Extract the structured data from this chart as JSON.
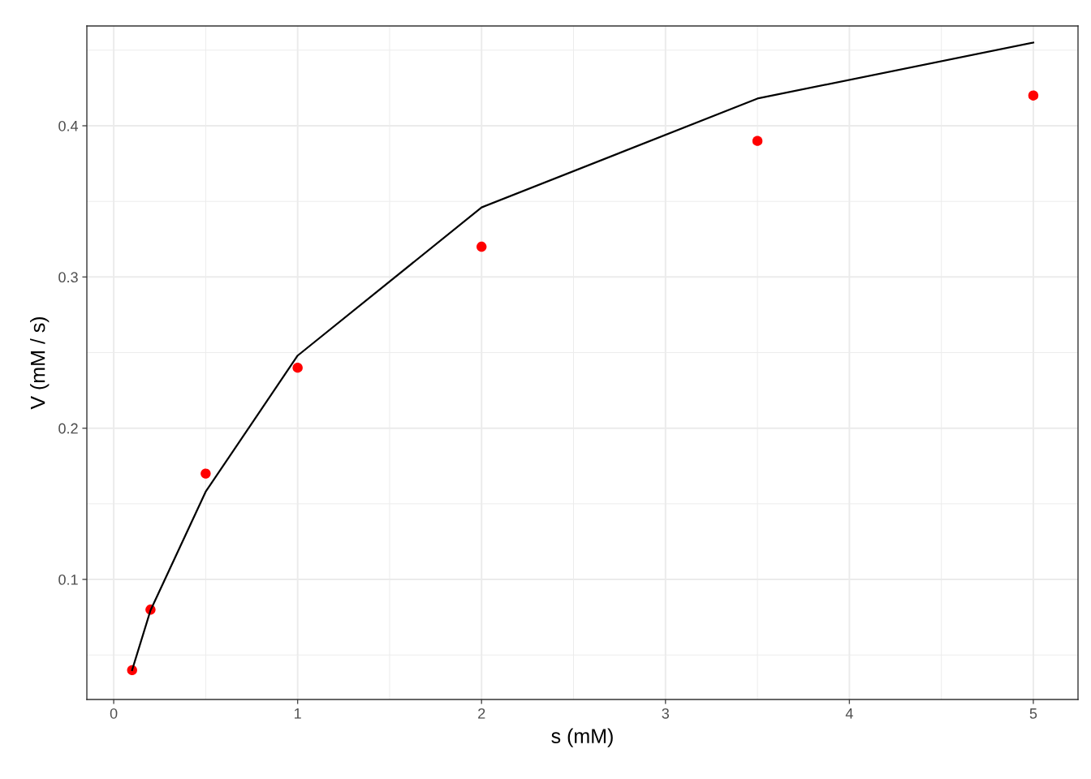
{
  "chart_data": {
    "type": "line",
    "xlabel": "s (mM)",
    "ylabel": "V (mM / s)",
    "xlim": [
      -0.146,
      5.243
    ],
    "ylim": [
      0.0206,
      0.466
    ],
    "xticks": [
      0,
      1,
      2,
      3,
      4,
      5
    ],
    "yticks": [
      0.1,
      0.2,
      0.3,
      0.4
    ],
    "grid": true,
    "legend": false,
    "series": [
      {
        "type": "scatter",
        "marker": "circle",
        "color": "#ff0000",
        "x": [
          0.1,
          0.2,
          0.5,
          1,
          2,
          3.5,
          5
        ],
        "values": [
          0.04,
          0.08,
          0.17,
          0.24,
          0.32,
          0.39,
          0.42
        ]
      },
      {
        "marker": "none",
        "color": "#000000",
        "x": [
          0.1,
          0.2,
          0.5,
          1,
          2,
          3.5,
          5
        ],
        "values": [
          0.04,
          0.0795,
          0.158,
          0.248,
          0.346,
          0.418,
          0.455
        ],
        "line_style": "solid"
      }
    ]
  }
}
